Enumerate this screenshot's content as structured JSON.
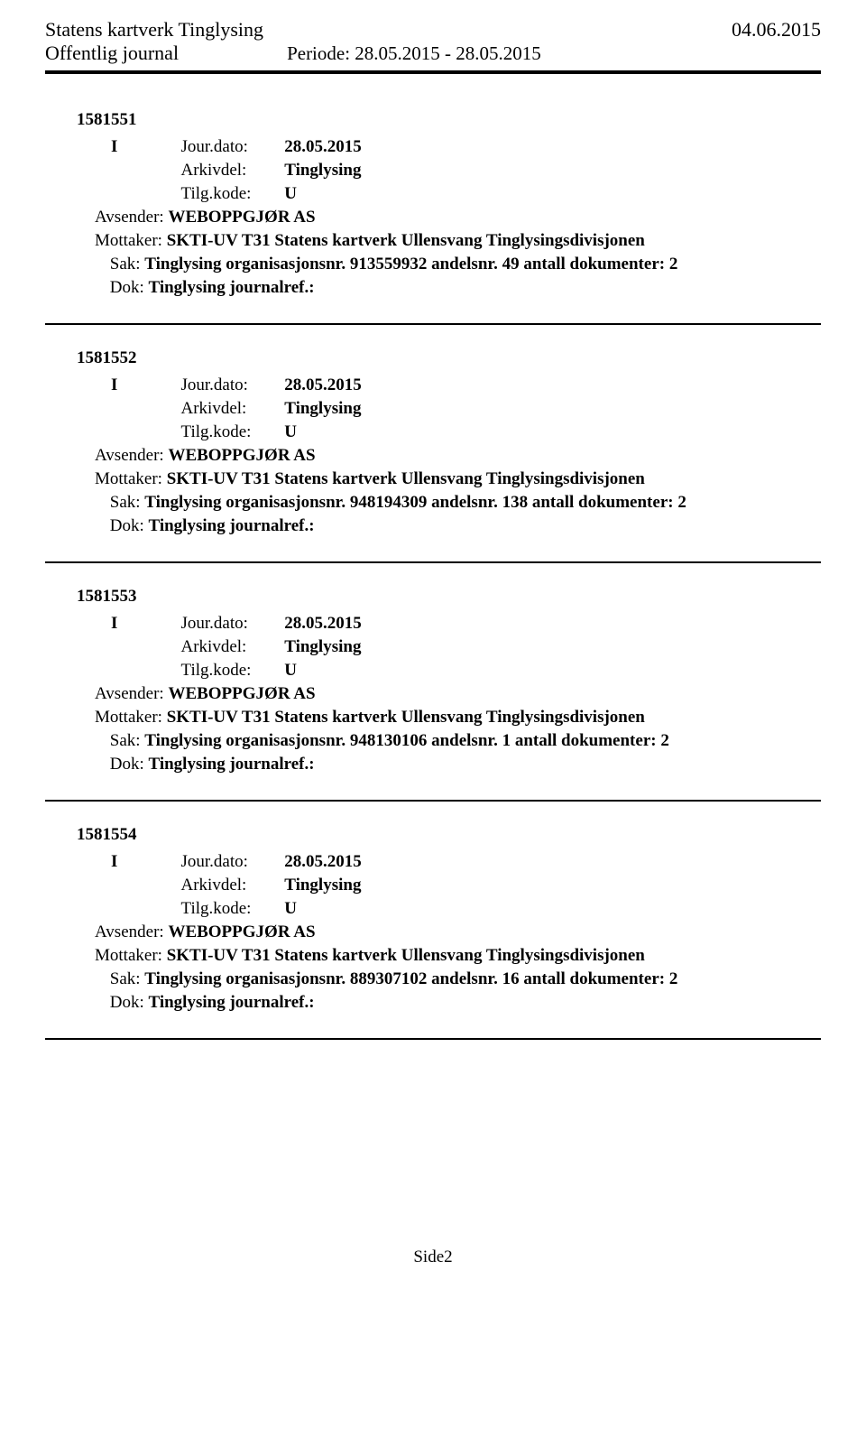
{
  "header": {
    "org": "Statens kartverk Tinglysing",
    "date": "04.06.2015",
    "subtitle": "Offentlig journal",
    "periode_label": "Periode:",
    "periode_value": "28.05.2015 - 28.05.2015"
  },
  "labels": {
    "jourdato": "Jour.dato:",
    "arkivdel": "Arkivdel:",
    "tilgkode": "Tilg.kode:",
    "avsender": "Avsender:",
    "mottaker": "Mottaker:",
    "sak": "Sak:",
    "dok": "Dok:"
  },
  "entries": [
    {
      "id": "1581551",
      "io": "I",
      "jourdato": "28.05.2015",
      "arkivdel": "Tinglysing",
      "tilgkode": "U",
      "avsender": "WEBOPPGJØR AS",
      "mottaker": "SKTI-UV T31 Statens kartverk Ullensvang Tinglysingsdivisjonen",
      "sak": "Tinglysing organisasjonsnr. 913559932 andelsnr. 49 antall dokumenter: 2",
      "dok": "Tinglysing journalref.:"
    },
    {
      "id": "1581552",
      "io": "I",
      "jourdato": "28.05.2015",
      "arkivdel": "Tinglysing",
      "tilgkode": "U",
      "avsender": "WEBOPPGJØR AS",
      "mottaker": "SKTI-UV T31 Statens kartverk Ullensvang Tinglysingsdivisjonen",
      "sak": "Tinglysing organisasjonsnr. 948194309 andelsnr. 138 antall dokumenter: 2",
      "dok": "Tinglysing journalref.:"
    },
    {
      "id": "1581553",
      "io": "I",
      "jourdato": "28.05.2015",
      "arkivdel": "Tinglysing",
      "tilgkode": "U",
      "avsender": "WEBOPPGJØR AS",
      "mottaker": "SKTI-UV T31 Statens kartverk Ullensvang Tinglysingsdivisjonen",
      "sak": "Tinglysing organisasjonsnr. 948130106 andelsnr. 1 antall dokumenter: 2",
      "dok": "Tinglysing journalref.:"
    },
    {
      "id": "1581554",
      "io": "I",
      "jourdato": "28.05.2015",
      "arkivdel": "Tinglysing",
      "tilgkode": "U",
      "avsender": "WEBOPPGJØR AS",
      "mottaker": "SKTI-UV T31 Statens kartverk Ullensvang Tinglysingsdivisjonen",
      "sak": "Tinglysing organisasjonsnr. 889307102 andelsnr. 16 antall dokumenter: 2",
      "dok": "Tinglysing journalref.:"
    }
  ],
  "footer": {
    "page": "Side2"
  }
}
